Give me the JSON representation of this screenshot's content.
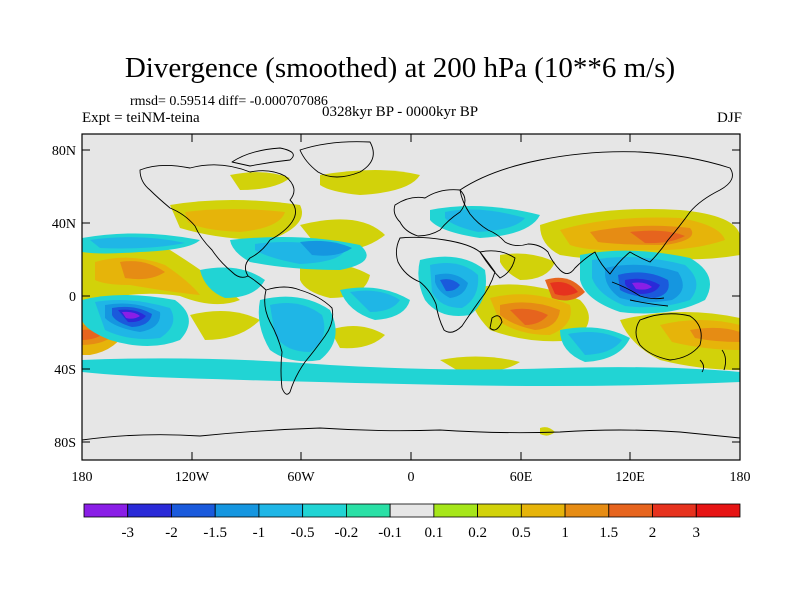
{
  "title": "Divergence (smoothed) at 200 hPa (10**6 m/s)",
  "stats": "rmsd= 0.59514 diff= -0.000707086",
  "experiment": "Expt = teiNM-teina",
  "period": "0328kyr BP - 0000kyr BP",
  "season": "DJF",
  "lat_labels": [
    "80N",
    "40N",
    "0",
    "40S",
    "80S"
  ],
  "lon_labels": [
    "180",
    "120W",
    "60W",
    "0",
    "60E",
    "120E",
    "180"
  ],
  "colorbar": {
    "labels": [
      "-3",
      "-2",
      "-1.5",
      "-1",
      "-0.5",
      "-0.2",
      "-0.1",
      "0.1",
      "0.2",
      "0.5",
      "1",
      "1.5",
      "2",
      "3"
    ],
    "colors": [
      "#8a1ee6",
      "#2a2ad8",
      "#1a5adc",
      "#1596e0",
      "#1fb6e6",
      "#21d4d4",
      "#2ae0a6",
      "#e6e6e6",
      "#a6e61a",
      "#d2d20a",
      "#e6b40a",
      "#e68c14",
      "#e6641e",
      "#e6321e",
      "#e61414"
    ]
  },
  "map_colors": {
    "background": "#e6e6e6",
    "coast": "#000000"
  }
}
